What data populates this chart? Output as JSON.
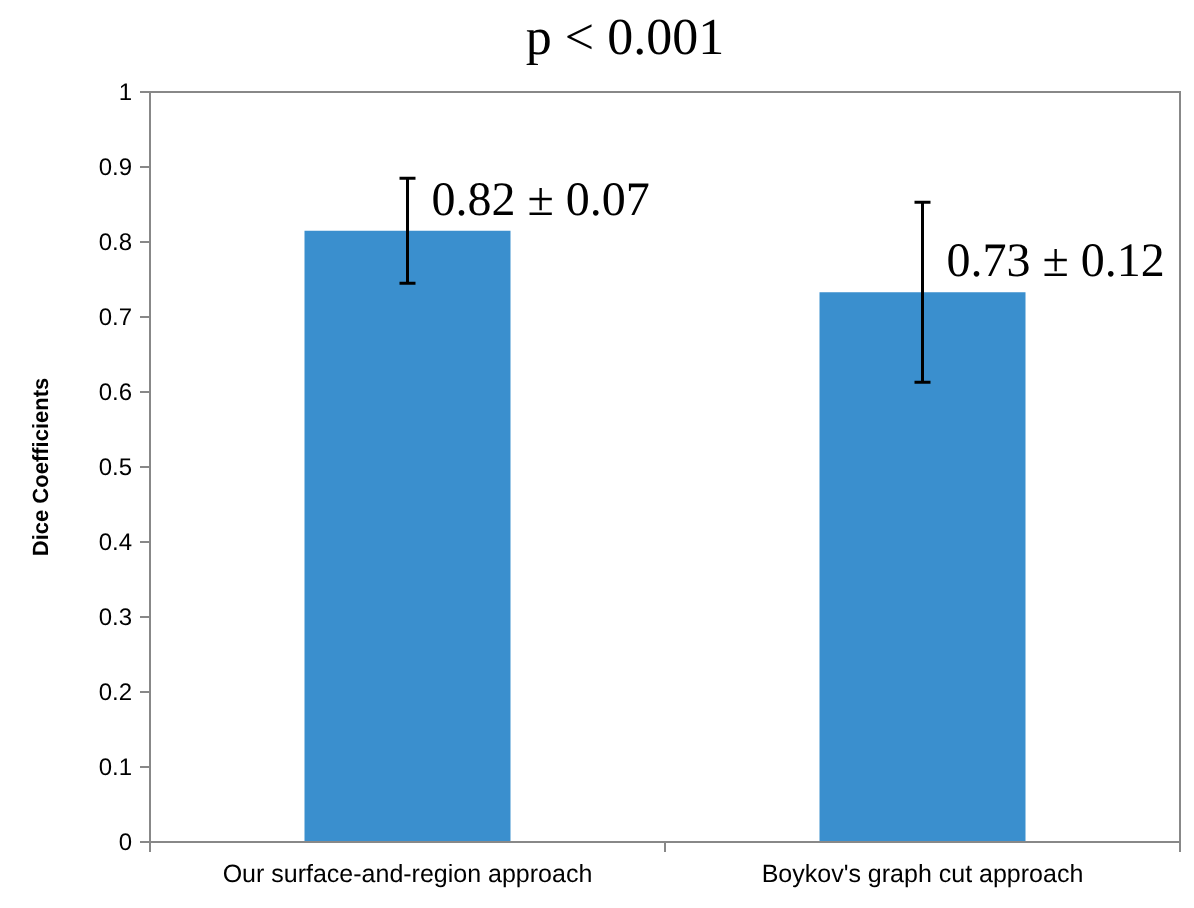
{
  "chart_data": {
    "type": "bar",
    "title": "p < 0.001",
    "ylabel": "Dice Coefficients",
    "categories": [
      "Our surface-and-region approach",
      "Boykov's graph cut approach"
    ],
    "values": [
      0.815,
      0.733
    ],
    "errors": [
      0.07,
      0.12
    ],
    "value_labels": [
      "0.82 ± 0.07",
      "0.73 ± 0.12"
    ],
    "color": "#3a8fce",
    "ylim": [
      0,
      1
    ],
    "yticks": [
      0,
      0.1,
      0.2,
      0.3,
      0.4,
      0.5,
      0.6,
      0.7,
      0.8,
      0.9,
      1
    ],
    "grid": false
  }
}
